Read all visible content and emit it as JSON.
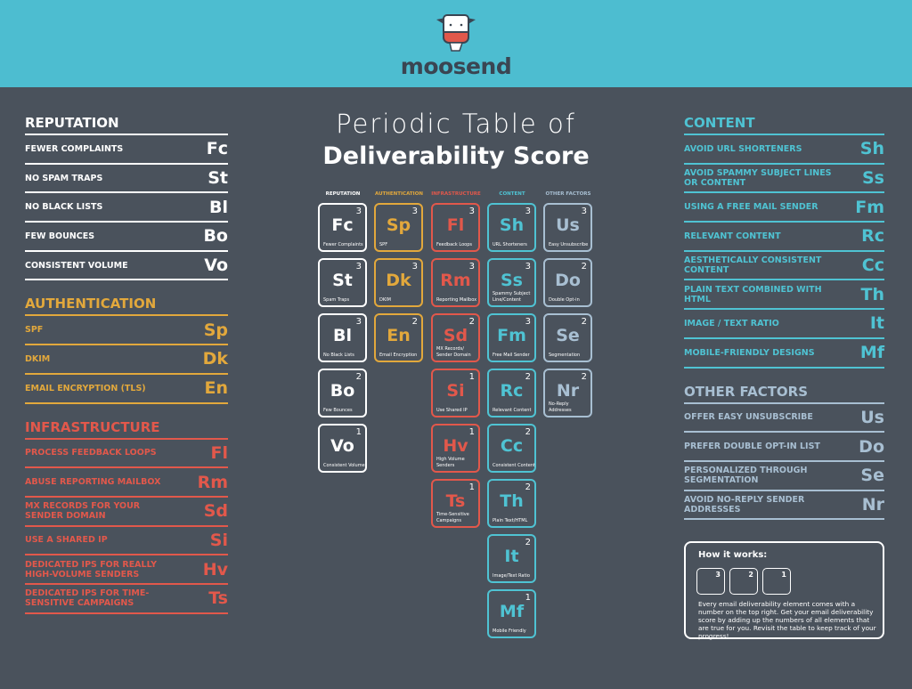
{
  "brand": {
    "name": "moosend",
    "header_color": "#4dbdd0",
    "background": "#4a525c"
  },
  "title": {
    "line1": "Periodic Table of",
    "line2": "Deliverability Score"
  },
  "colors": {
    "reputation": "#ffffff",
    "authentication": "#e2a83c",
    "infrastructure": "#e2584b",
    "content": "#4fc3d3",
    "other": "#a8bfd2"
  },
  "left_sections": [
    {
      "key": "reputation",
      "title": "REPUTATION",
      "items": [
        {
          "label": "FEWER COMPLAINTS",
          "symbol": "Fc"
        },
        {
          "label": "NO SPAM TRAPS",
          "symbol": "St"
        },
        {
          "label": "NO BLACK LISTS",
          "symbol": "Bl"
        },
        {
          "label": "FEW BOUNCES",
          "symbol": "Bo"
        },
        {
          "label": "CONSISTENT VOLUME",
          "symbol": "Vo"
        }
      ]
    },
    {
      "key": "authentication",
      "title": "AUTHENTICATION",
      "items": [
        {
          "label": "SPF",
          "symbol": "Sp"
        },
        {
          "label": "DKIM",
          "symbol": "Dk"
        },
        {
          "label": "EMAIL ENCRYPTION (TLS)",
          "symbol": "En"
        }
      ]
    },
    {
      "key": "infrastructure",
      "title": "INFRASTRUCTURE",
      "items": [
        {
          "label": "PROCESS FEEDBACK LOOPS",
          "symbol": "Fl"
        },
        {
          "label": "ABUSE REPORTING MAILBOX",
          "symbol": "Rm"
        },
        {
          "label": "MX RECORDS FOR YOUR SENDER DOMAIN",
          "symbol": "Sd"
        },
        {
          "label": "USE A SHARED IP",
          "symbol": "Si"
        },
        {
          "label": "DEDICATED IPS FOR REALLY HIGH-VOLUME SENDERS",
          "symbol": "Hv"
        },
        {
          "label": "DEDICATED IPS FOR TIME-SENSITIVE CAMPAIGNS",
          "symbol": "Ts"
        }
      ]
    }
  ],
  "right_sections": [
    {
      "key": "content",
      "title": "CONTENT",
      "items": [
        {
          "label": "AVOID URL SHORTENERS",
          "symbol": "Sh"
        },
        {
          "label": "AVOID SPAMMY SUBJECT LINES OR CONTENT",
          "symbol": "Ss"
        },
        {
          "label": "USING A FREE MAIL SENDER",
          "symbol": "Fm"
        },
        {
          "label": "RELEVANT CONTENT",
          "symbol": "Rc"
        },
        {
          "label": "AESTHETICALLY CONSISTENT CONTENT",
          "symbol": "Cc"
        },
        {
          "label": "PLAIN TEXT COMBINED WITH HTML",
          "symbol": "Th"
        },
        {
          "label": "IMAGE / TEXT RATIO",
          "symbol": "It"
        },
        {
          "label": "MOBILE-FRIENDLY DESIGNS",
          "symbol": "Mf"
        }
      ]
    },
    {
      "key": "other",
      "title": "OTHER FACTORS",
      "items": [
        {
          "label": "OFFER EASY UNSUBSCRIBE",
          "symbol": "Us"
        },
        {
          "label": "PREFER DOUBLE OPT-IN LIST",
          "symbol": "Do"
        },
        {
          "label": "PERSONALIZED THROUGH SEGMENTATION",
          "symbol": "Se"
        },
        {
          "label": "AVOID NO-REPLY SENDER ADDRESSES",
          "symbol": "Nr"
        }
      ]
    }
  ],
  "table": [
    {
      "key": "reputation",
      "header": "REPUTATION",
      "tiles": [
        {
          "symbol": "Fc",
          "score": 3,
          "name": "Fewer Complaints"
        },
        {
          "symbol": "St",
          "score": 3,
          "name": "Spam Traps"
        },
        {
          "symbol": "Bl",
          "score": 3,
          "name": "No Black Lists"
        },
        {
          "symbol": "Bo",
          "score": 2,
          "name": "Few Bounces"
        },
        {
          "symbol": "Vo",
          "score": 1,
          "name": "Consistent Volume"
        }
      ]
    },
    {
      "key": "authentication",
      "header": "AUTHENTICATION",
      "tiles": [
        {
          "symbol": "Sp",
          "score": 3,
          "name": "SPF"
        },
        {
          "symbol": "Dk",
          "score": 3,
          "name": "DKIM"
        },
        {
          "symbol": "En",
          "score": 2,
          "name": "Email Encryption"
        }
      ]
    },
    {
      "key": "infrastructure",
      "header": "INFRASTRUCTURE",
      "tiles": [
        {
          "symbol": "Fl",
          "score": 3,
          "name": "Feedback Loops"
        },
        {
          "symbol": "Rm",
          "score": 3,
          "name": "Reporting Mailbox"
        },
        {
          "symbol": "Sd",
          "score": 2,
          "name": "MX Records/ Sender Domain"
        },
        {
          "symbol": "Si",
          "score": 1,
          "name": "Use Shared IP"
        },
        {
          "symbol": "Hv",
          "score": 1,
          "name": "High Volume Senders"
        },
        {
          "symbol": "Ts",
          "score": 1,
          "name": "Time-Sensitive Campaigns"
        }
      ]
    },
    {
      "key": "content",
      "header": "CONTENT",
      "tiles": [
        {
          "symbol": "Sh",
          "score": 3,
          "name": "URL Shorteners"
        },
        {
          "symbol": "Ss",
          "score": 3,
          "name": "Spammy Subject Line/Content"
        },
        {
          "symbol": "Fm",
          "score": 3,
          "name": "Free Mail Sender"
        },
        {
          "symbol": "Rc",
          "score": 2,
          "name": "Relevant Content"
        },
        {
          "symbol": "Cc",
          "score": 2,
          "name": "Consistent Content"
        },
        {
          "symbol": "Th",
          "score": 2,
          "name": "Plain Text/HTML"
        },
        {
          "symbol": "It",
          "score": 2,
          "name": "Image/Text Ratio"
        },
        {
          "symbol": "Mf",
          "score": 1,
          "name": "Mobile Friendly"
        }
      ]
    },
    {
      "key": "other",
      "header": "OTHER FACTORS",
      "tiles": [
        {
          "symbol": "Us",
          "score": 3,
          "name": "Easy Unsubscribe"
        },
        {
          "symbol": "Do",
          "score": 2,
          "name": "Double Opt-in"
        },
        {
          "symbol": "Se",
          "score": 2,
          "name": "Segmentation"
        },
        {
          "symbol": "Nr",
          "score": 2,
          "name": "No-Reply Addresses"
        }
      ]
    }
  ],
  "how_it_works": {
    "title": "How it works:",
    "scores": [
      "3",
      "2",
      "1"
    ],
    "text": "Every email deliverability element comes with a number on the top right. Get your email deliverability score by adding up the numbers of all elements that are true for you. Revisit the table to keep track of your progress!"
  }
}
